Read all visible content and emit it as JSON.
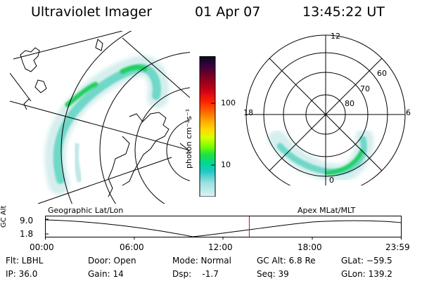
{
  "header": {
    "title": "Ultraviolet Imager",
    "date": "01 Apr 07",
    "time": "13:45:22 UT"
  },
  "colorbar": {
    "unit_label": "photon cm⁻²s⁻¹",
    "ticks": [
      "100",
      "10"
    ],
    "colors": [
      "#0a0a1a",
      "#3a0040",
      "#800020",
      "#c80018",
      "#ff2000",
      "#ff6a00",
      "#ffa800",
      "#ffd800",
      "#d8ff00",
      "#7cff00",
      "#20e040",
      "#00d890",
      "#20c8c8",
      "#9adfe0",
      "#dff3f3"
    ]
  },
  "geo_map": {
    "name": "geographic-map"
  },
  "polar_plot": {
    "labels": {
      "top": "12",
      "left": "18",
      "right": "6",
      "bottom": "0",
      "lat_60": "60",
      "lat_70": "70",
      "lat_80": "80"
    }
  },
  "timeline": {
    "axis_name": "GC Alt",
    "y_ticks": [
      "9.0",
      "1.8"
    ],
    "left_label": "Geographic Lat/Lon",
    "right_label": "Apex MLat/MLT",
    "x_ticks": [
      "00:00",
      "06:00",
      "12:00",
      "18:00",
      "23:59"
    ],
    "current_fraction": 0.573
  },
  "status": {
    "filter": "Flt: LBHL",
    "ip": "IP: 36.0",
    "door": "Door: Open",
    "gain": "Gain: 14",
    "mode": "Mode: Normal",
    "dsp": "Dsp:    -1.7",
    "gc_alt": "GC Alt: 6.8 Re",
    "seq": "Seq: 39",
    "glat": "GLat: −59.5",
    "glon": "GLon: 139.2"
  },
  "colors": {
    "timeline_marker": "#e00000"
  }
}
